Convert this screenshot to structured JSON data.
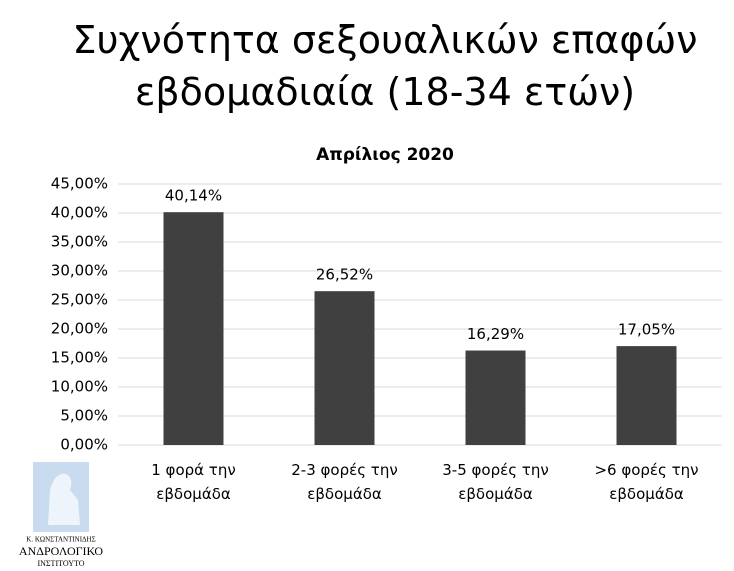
{
  "chart_data": {
    "type": "bar",
    "title": "Συχνότητα σεξουαλικών επαφών εβδομαδιαία (18-34 ετών)",
    "subtitle": "Απρίλιος 2020",
    "categories": [
      "1 φορά την εβδομάδα",
      "2-3 φορές την εβδομάδα",
      "3-5 φορές την εβδομάδα",
      ">6 φορές την εβδομάδα"
    ],
    "values": [
      40.14,
      26.52,
      16.29,
      17.05
    ],
    "value_labels": [
      "40,14%",
      "26,52%",
      "16,29%",
      "17,05%"
    ],
    "color": "#404040",
    "ylim": [
      0,
      45
    ],
    "yticks": [
      {
        "value": 0,
        "label": "0,00%"
      },
      {
        "value": 5,
        "label": "5,00%"
      },
      {
        "value": 10,
        "label": "10,00%"
      },
      {
        "value": 15,
        "label": "15,00%"
      },
      {
        "value": 20,
        "label": "20,00%"
      },
      {
        "value": 25,
        "label": "25,00%"
      },
      {
        "value": 30,
        "label": "30,00%"
      },
      {
        "value": 35,
        "label": "35,00%"
      },
      {
        "value": 40,
        "label": "40,00%"
      },
      {
        "value": 45,
        "label": "45,00%"
      }
    ],
    "grid": true
  },
  "logo": {
    "lines": [
      "Κ. ΚΩΝΣΤΑΝΤΙΝΙΔΗΣ",
      "ΑΝΔΡΟΛΟΓΙΚΟ",
      "ΙΝΣΤΙΤΟΥΤΟ"
    ]
  }
}
